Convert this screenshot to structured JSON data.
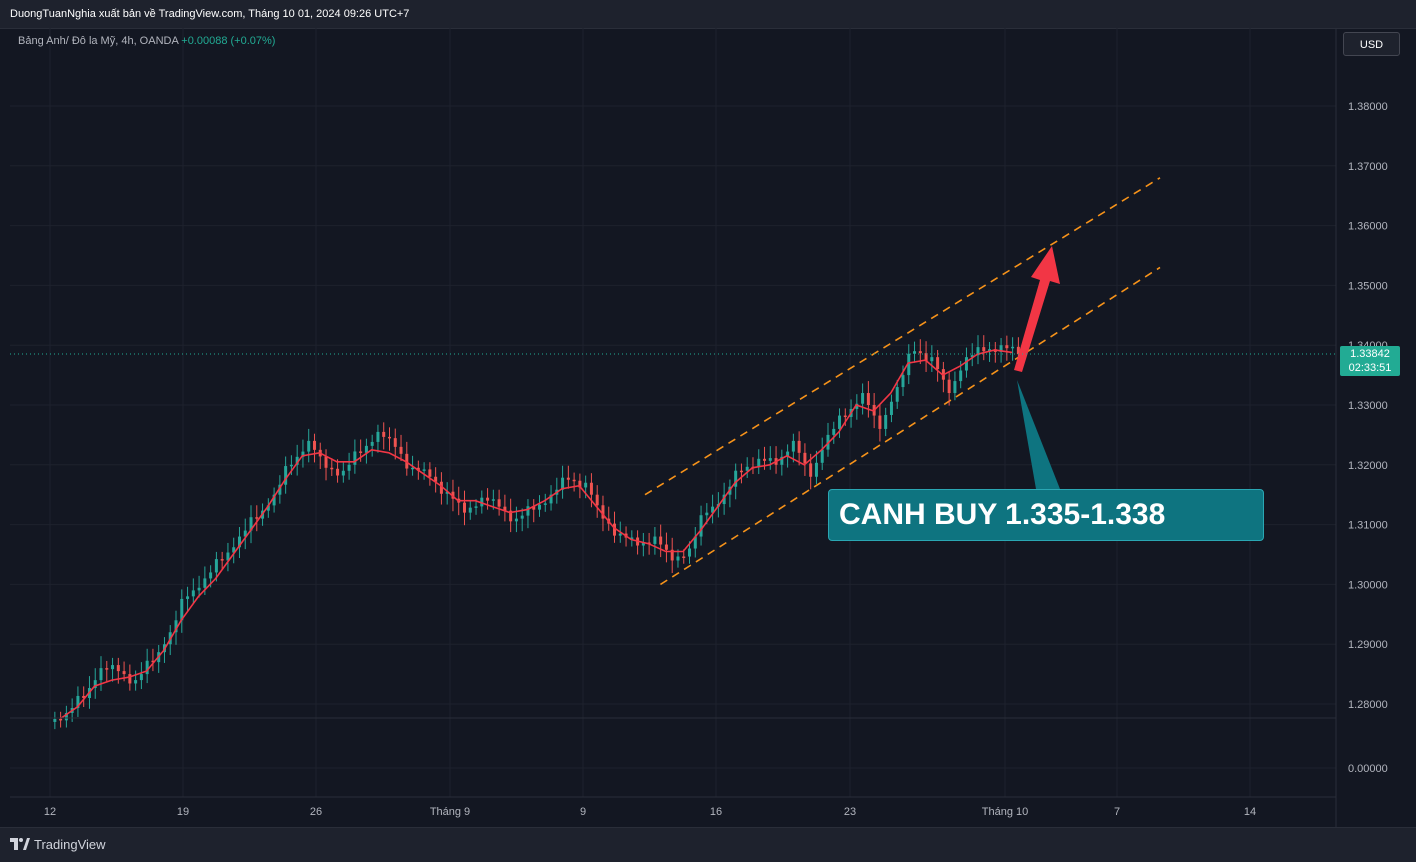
{
  "header": {
    "publisher": "DuongTuanNghia xuất bản về TradingView.com, Tháng 10 01, 2024 09:26 UTC+7"
  },
  "legend": {
    "symbol": "Bảng Anh/ Đô la Mỹ, 4h, OANDA",
    "change": "+0.00088 (+0.07%)"
  },
  "currency_button": "USD",
  "price_scale": {
    "ticks": [
      "1.38000",
      "1.37000",
      "1.36000",
      "1.35000",
      "1.34000",
      "1.33000",
      "1.32000",
      "1.31000",
      "1.30000",
      "1.29000",
      "1.28000",
      "0.00000"
    ]
  },
  "time_scale": {
    "ticks": [
      "12",
      "19",
      "26",
      "Tháng 9",
      "9",
      "16",
      "23",
      "Tháng 10",
      "7",
      "14"
    ]
  },
  "last_price": {
    "value": "1.33842",
    "countdown": "02:33:51",
    "color": "#22ab94"
  },
  "annotation": {
    "text": "CANH BUY 1.335-1.338",
    "background": "#0e7480"
  },
  "colors": {
    "up": "#26a69a",
    "down": "#ef5350",
    "ma": "#f23645",
    "channel": "#f7931a",
    "arrow": "#f23645"
  },
  "footer": {
    "brand": "TradingView"
  },
  "chart_data": {
    "type": "candlestick",
    "instrument": "Bảng Anh/ Đô la Mỹ",
    "timeframe": "4h",
    "ylim": [
      1.275,
      1.385
    ],
    "series": [
      {
        "name": "price",
        "values": [
          1.2785,
          1.281,
          1.286,
          1.2855,
          1.284,
          1.287,
          1.292,
          1.298,
          1.301,
          1.304,
          1.308,
          1.311,
          1.315,
          1.32,
          1.324,
          1.3195,
          1.319,
          1.322,
          1.3255,
          1.323,
          1.3195,
          1.318,
          1.3155,
          1.312,
          1.3145,
          1.313,
          1.311,
          1.3125,
          1.315,
          1.3175,
          1.317,
          1.311,
          1.3085,
          1.3065,
          1.308,
          1.304,
          1.306,
          1.312,
          1.315,
          1.319,
          1.321,
          1.32,
          1.324,
          1.318,
          1.325,
          1.328,
          1.332,
          1.326,
          1.333,
          1.339,
          1.338,
          1.332,
          1.338,
          1.339,
          1.34,
          1.3385
        ]
      },
      {
        "name": "ma",
        "values": [
          1.2775,
          1.2795,
          1.283,
          1.284,
          1.2845,
          1.2855,
          1.289,
          1.294,
          1.298,
          1.301,
          1.305,
          1.309,
          1.313,
          1.3175,
          1.3215,
          1.322,
          1.3205,
          1.3205,
          1.3225,
          1.322,
          1.3205,
          1.3185,
          1.3165,
          1.314,
          1.314,
          1.313,
          1.312,
          1.3125,
          1.314,
          1.316,
          1.3165,
          1.313,
          1.3095,
          1.3075,
          1.3068,
          1.3055,
          1.3055,
          1.309,
          1.313,
          1.317,
          1.3195,
          1.32,
          1.3215,
          1.32,
          1.3225,
          1.3255,
          1.33,
          1.329,
          1.332,
          1.337,
          1.3375,
          1.335,
          1.3365,
          1.3385,
          1.3392,
          1.3388
        ]
      }
    ],
    "channel": {
      "upper": [
        [
          0.0,
          1.315
        ],
        [
          1.0,
          1.368
        ]
      ],
      "lower": [
        [
          0.03,
          1.3
        ],
        [
          1.0,
          1.353
        ]
      ]
    },
    "last_price": 1.33842
  }
}
